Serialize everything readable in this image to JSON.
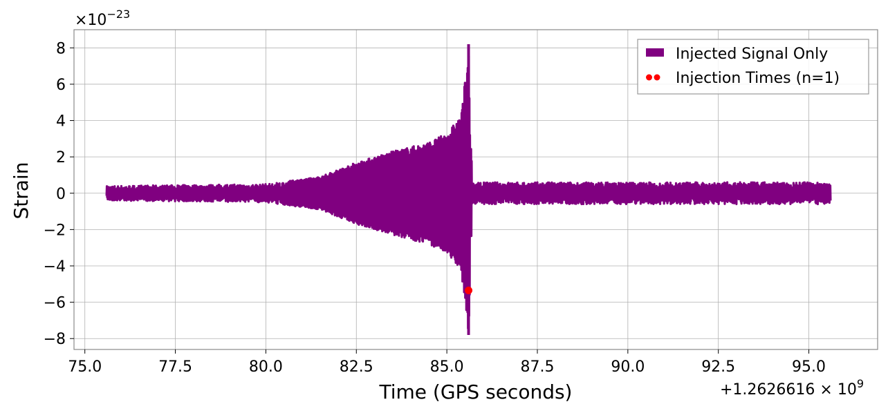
{
  "chart_data": {
    "type": "line",
    "xlabel": "Time (GPS seconds)",
    "ylabel": "Strain",
    "x_offset_label": "+1.2626616 × 10",
    "x_offset_exp": "9",
    "y_multiplier_label": "×10",
    "y_multiplier_exp": "−23",
    "xlim": [
      74.7,
      96.9
    ],
    "ylim": [
      -8.6,
      9.0
    ],
    "x_ticks": [
      75.0,
      77.5,
      80.0,
      82.5,
      85.0,
      87.5,
      90.0,
      92.5,
      95.0
    ],
    "x_tick_labels": [
      "75.0",
      "77.5",
      "80.0",
      "82.5",
      "85.0",
      "87.5",
      "90.0",
      "92.5",
      "95.0"
    ],
    "y_ticks": [
      -8,
      -6,
      -4,
      -2,
      0,
      2,
      4,
      6,
      8
    ],
    "y_tick_labels": [
      "−8",
      "−6",
      "−4",
      "−2",
      "0",
      "2",
      "4",
      "6",
      "8"
    ],
    "grid": true,
    "legend_position": "top-right",
    "series": [
      {
        "name": "Injected Signal Only",
        "kind": "line",
        "color": "#800080",
        "time_range": [
          75.6,
          95.6
        ],
        "merger_time": 85.6,
        "envelope_points": [
          {
            "x": 75.6,
            "amp": 0.4
          },
          {
            "x": 80.0,
            "amp": 0.5
          },
          {
            "x": 81.5,
            "amp": 0.9
          },
          {
            "x": 82.5,
            "amp": 1.7
          },
          {
            "x": 83.5,
            "amp": 2.3
          },
          {
            "x": 84.5,
            "amp": 2.8
          },
          {
            "x": 85.0,
            "amp": 3.3
          },
          {
            "x": 85.4,
            "amp": 4.3
          },
          {
            "x": 85.6,
            "amp": 8.2
          },
          {
            "x": 85.7,
            "amp": 0.6
          },
          {
            "x": 95.6,
            "amp": 0.6
          }
        ]
      },
      {
        "name": "Injection Times (n=1)",
        "kind": "scatter",
        "color": "#ff0000",
        "points": [
          {
            "x": 85.6,
            "y": -5.35
          }
        ]
      }
    ]
  }
}
